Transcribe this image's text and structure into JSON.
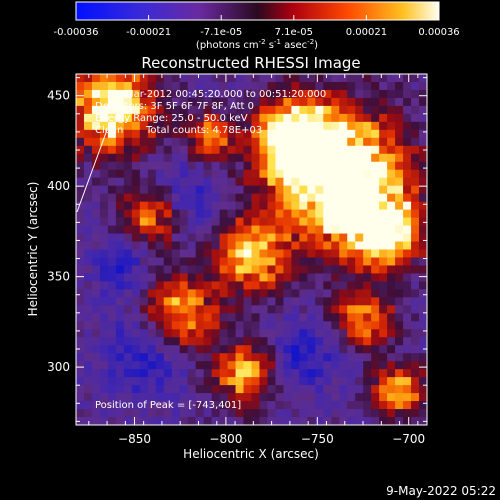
{
  "chart_data": {
    "type": "heatmap",
    "title": "Reconstructed RHESSI Image",
    "xlabel": "Heliocentric X (arcsec)",
    "ylabel": "Heliocentric Y (arcsec)",
    "xlim": [
      -882,
      -690
    ],
    "ylim": [
      268,
      462
    ],
    "xticks": [
      -850,
      -800,
      -750,
      -700
    ],
    "yticks": [
      300,
      350,
      400,
      450
    ],
    "colorbar": {
      "ticks": [
        "-0.00036",
        "-0.00021",
        "-7.1e-05",
        "7.1e-05",
        "0.00021",
        "0.00036"
      ],
      "units_prefix": "(photons cm",
      "units_exp1": "-2",
      "units_mid": " s",
      "units_exp2": "-1",
      "units_mid2": " asec",
      "units_exp3": "-2",
      "units_suffix": ")"
    },
    "annotations": {
      "time_range": "5-Mar-2012 00:45:20.000 to 00:51:20.000",
      "detectors": "Detectors: 3F 5F 6F 7F 8F, Att 0",
      "energy_range": "Energy Range: 25.0 - 50.0 keV",
      "clean_label": "Clean",
      "total_counts": "Total counts: 4.78E+03",
      "peak": "Position of Peak = [-743,401]"
    },
    "peak_position": [
      -743,
      401
    ],
    "colors": {
      "colormap": [
        "#0000ff",
        "#5a2aa6",
        "#7a2a7a",
        "#c01a1a",
        "#ff6a00",
        "#ffe04a",
        "#ffffff"
      ]
    }
  },
  "footer": {
    "timestamp": "9-May-2022 05:22"
  }
}
